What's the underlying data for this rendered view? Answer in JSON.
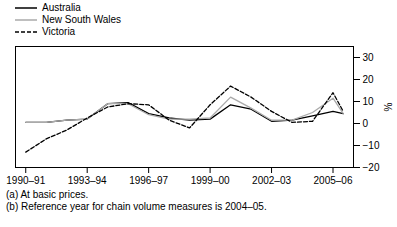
{
  "chart_data": {
    "type": "line",
    "x": [
      1990.5,
      1991.5,
      1992.5,
      1993.5,
      1994.5,
      1995.5,
      1996.5,
      1997.5,
      1998.5,
      1999.5,
      2000.5,
      2001.5,
      2002.5,
      2003.5,
      2004.5,
      2005.5,
      2006.0
    ],
    "series": [
      {
        "name": "Australia",
        "color": "#000000",
        "line_style": "solid",
        "values": [
          0.5,
          0.5,
          1.5,
          2.0,
          9.0,
          9.5,
          4.5,
          2.5,
          1.5,
          2.0,
          8.5,
          6.5,
          1.0,
          1.5,
          3.5,
          5.5,
          4.5
        ]
      },
      {
        "name": "New South Wales",
        "color": "#aaaaaa",
        "line_style": "solid",
        "values": [
          0.5,
          0.5,
          1.5,
          2.0,
          9.0,
          9.0,
          4.0,
          2.0,
          2.0,
          2.5,
          12.0,
          7.0,
          1.5,
          1.5,
          5.0,
          11.5,
          4.5
        ]
      },
      {
        "name": "Victoria",
        "color": "#000000",
        "line_style": "dashed",
        "values": [
          -13,
          -7,
          -3,
          2.5,
          7.5,
          9.0,
          8.5,
          1.5,
          -2.0,
          8.5,
          17.0,
          12.0,
          5.5,
          0.5,
          1.0,
          14.0,
          5.5
        ]
      }
    ],
    "xlim": [
      1990.0,
      2006.5
    ],
    "xticks": [
      {
        "value": 1990.5,
        "label": "1990–91"
      },
      {
        "value": 1993.5,
        "label": "1993–94"
      },
      {
        "value": 1996.5,
        "label": "1996–97"
      },
      {
        "value": 1999.5,
        "label": "1999–00"
      },
      {
        "value": 2002.5,
        "label": "2002–03"
      },
      {
        "value": 2005.5,
        "label": "2005–06"
      }
    ],
    "ylabel": "%",
    "ylim": [
      -20,
      35
    ],
    "yticks": [
      -20,
      -10,
      0,
      10,
      20,
      30
    ],
    "annotations": [
      "(a) At basic prices.",
      "(b) Reference year for chain volume measures is 2004–05."
    ],
    "legend": "upper left",
    "grid": false
  }
}
